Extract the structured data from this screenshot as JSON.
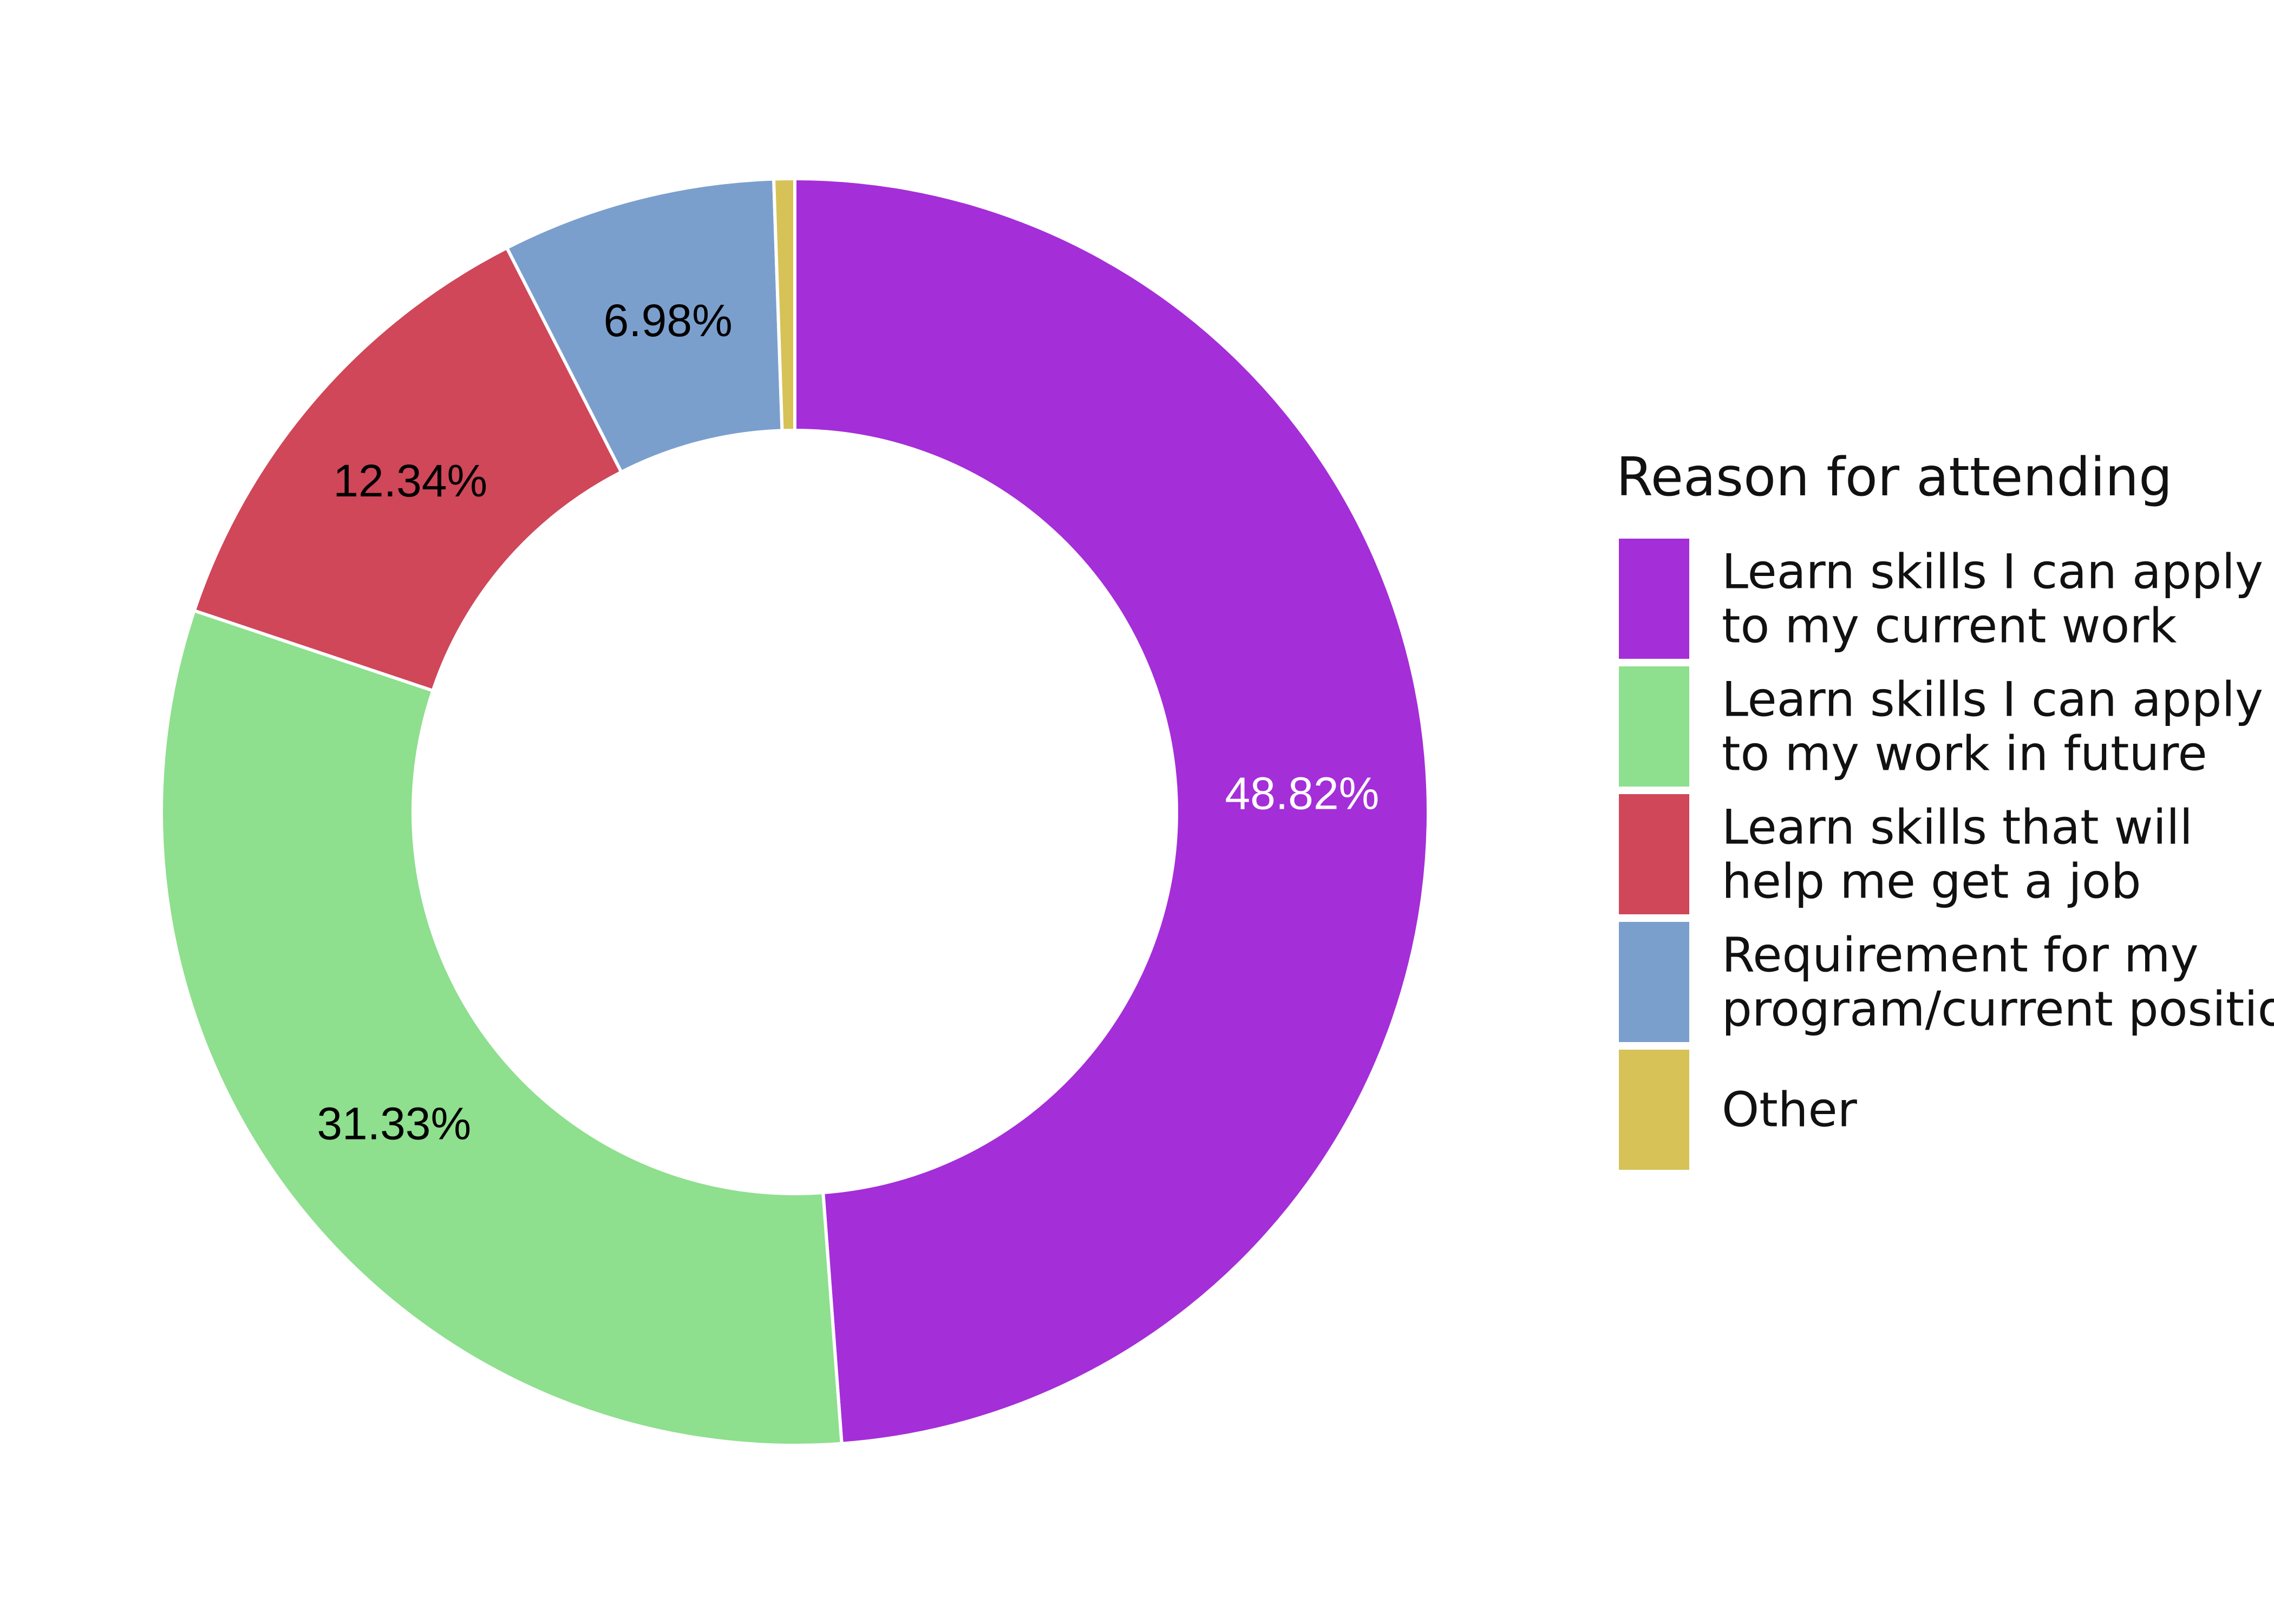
{
  "chart_data": {
    "type": "pie",
    "donut": true,
    "legend_title": "Reason for attending",
    "legend_position": "right",
    "slices": [
      {
        "label": "Learn skills I can apply to my current work",
        "legend_lines": [
          "Learn skills I can apply",
          "to my current work"
        ],
        "value": 48.82,
        "value_label": "48.82%",
        "color": "#a42ed8",
        "label_color": "#ffffff"
      },
      {
        "label": "Learn skills I can apply to my work in future",
        "legend_lines": [
          "Learn skills I can apply",
          "to my work in future"
        ],
        "value": 31.33,
        "value_label": "31.33%",
        "color": "#8edf8e",
        "label_color": "#000000"
      },
      {
        "label": "Learn skills that will help me get a job",
        "legend_lines": [
          "Learn skills that will",
          "help me get a job"
        ],
        "value": 12.34,
        "value_label": "12.34%",
        "color": "#cf4759",
        "label_color": "#000000"
      },
      {
        "label": "Requirement for my program/current position",
        "legend_lines": [
          "Requirement for my",
          "program/current position"
        ],
        "value": 6.98,
        "value_label": "6.98%",
        "color": "#7b9fcd",
        "label_color": "#000000"
      },
      {
        "label": "Other",
        "legend_lines": [
          "Other"
        ],
        "value": 0.53,
        "value_label": "",
        "color": "#d6c257",
        "label_color": "#000000"
      }
    ]
  }
}
